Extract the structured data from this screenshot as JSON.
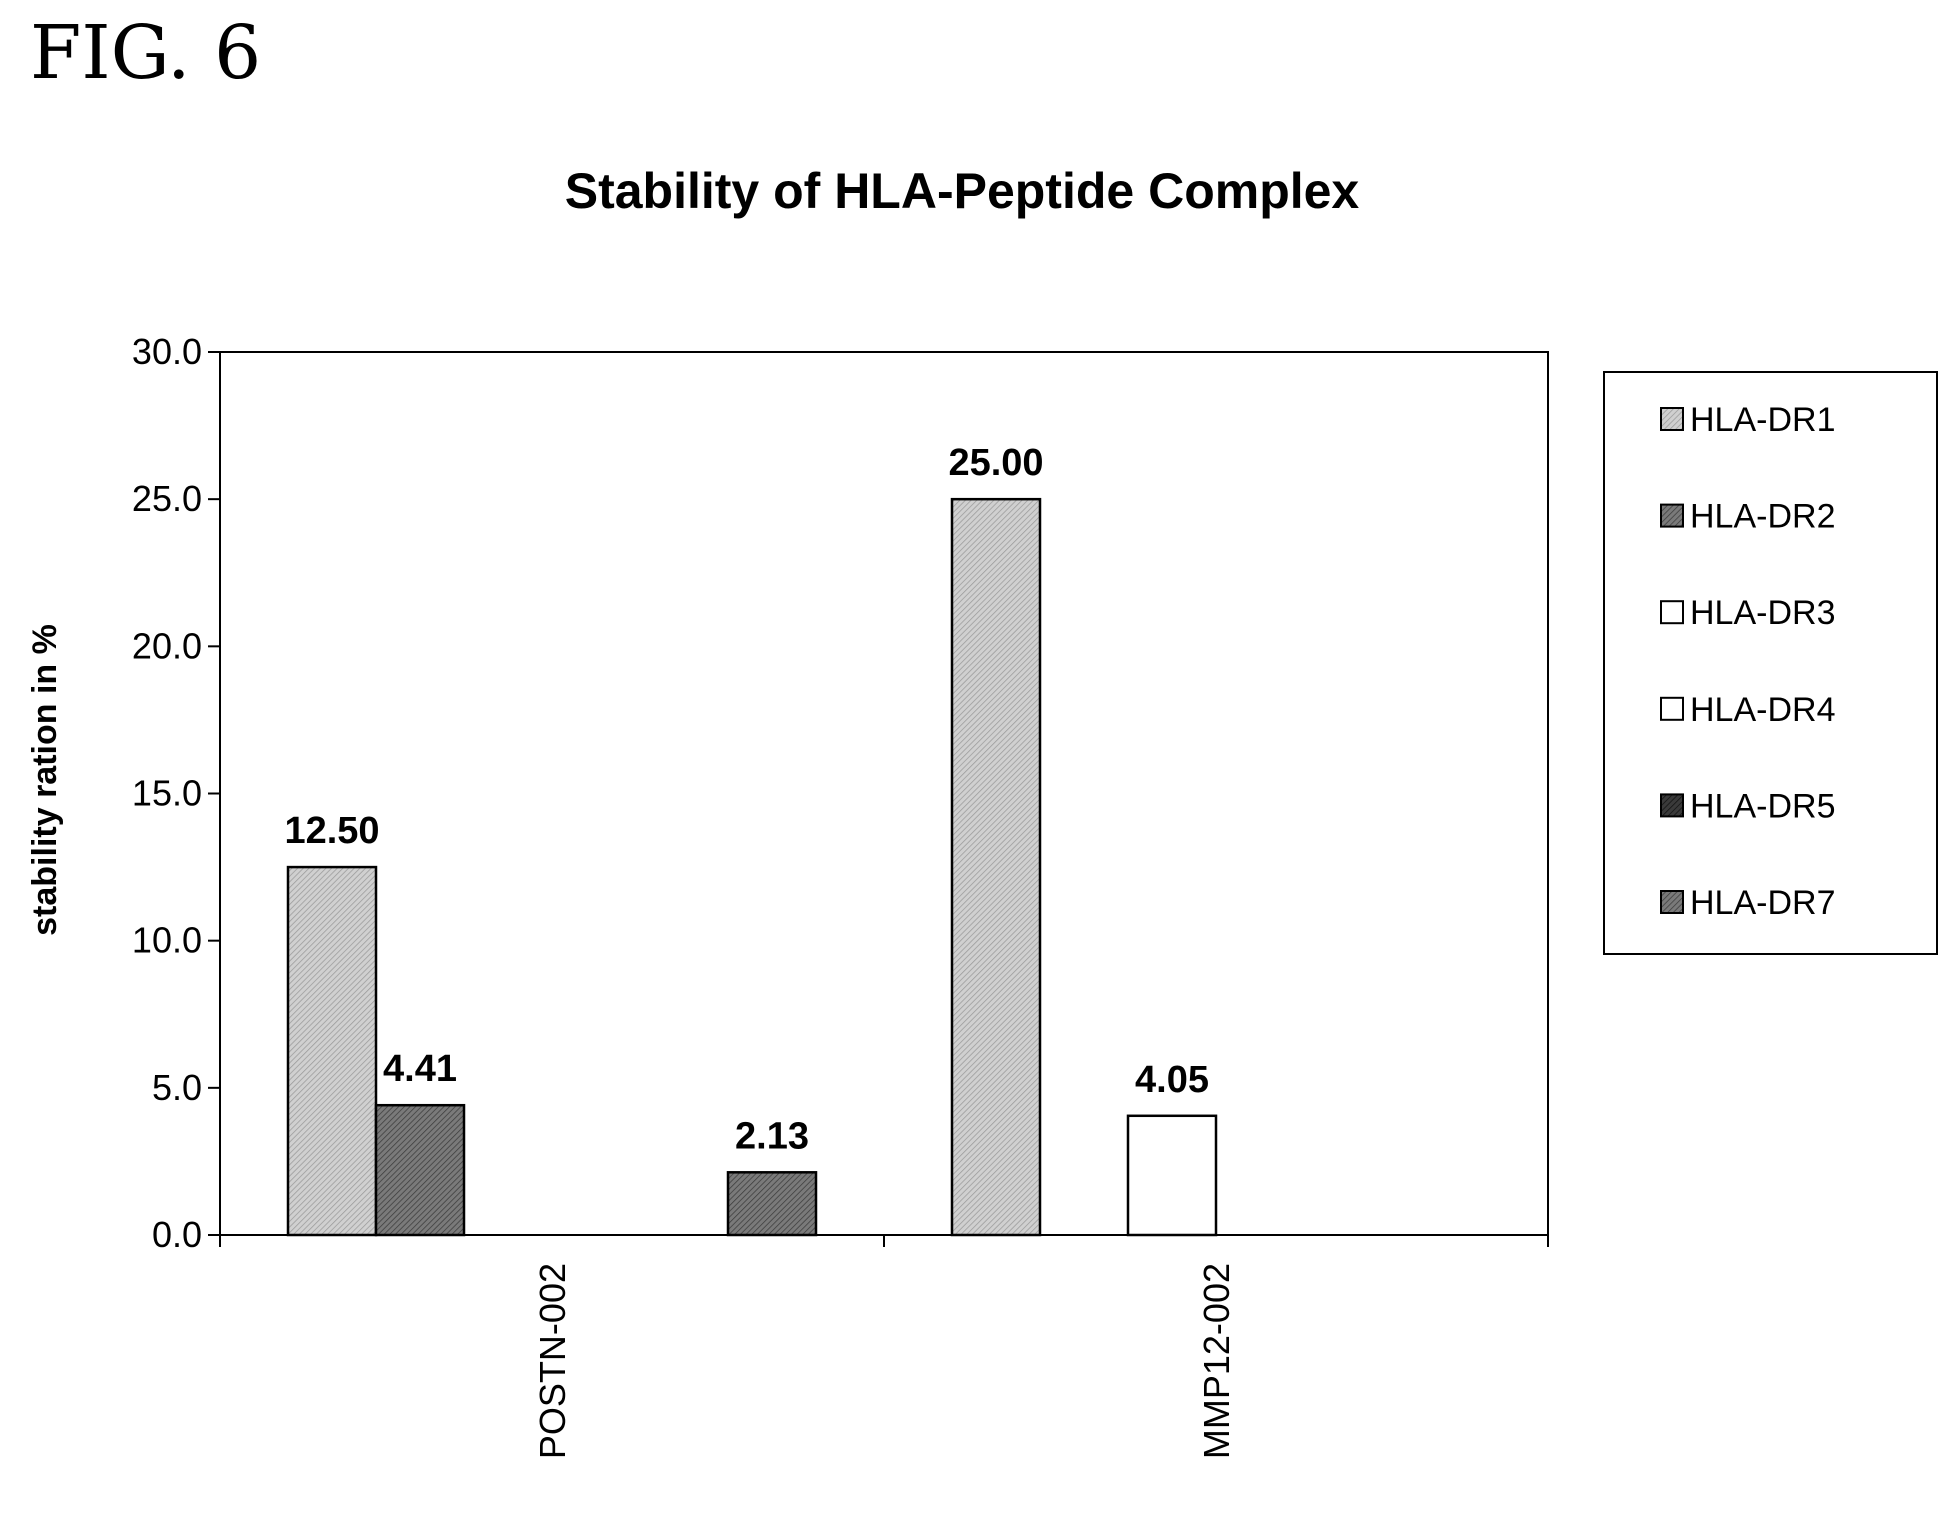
{
  "figure_label": "FIG. 6",
  "chart_data": {
    "type": "bar",
    "title": "Stability of HLA-Peptide Complex",
    "xlabel": "",
    "ylabel": "stability ration in %",
    "ylim": [
      0,
      30
    ],
    "yticks": [
      "0.0",
      "5.0",
      "10.0",
      "15.0",
      "20.0",
      "25.0",
      "30.0"
    ],
    "categories": [
      "POSTN-002",
      "MMP12-002"
    ],
    "series": [
      {
        "name": "HLA-DR1",
        "values": [
          12.5,
          25.0
        ],
        "labels": [
          "12.50",
          "25.00"
        ],
        "color": "#c4c4c4"
      },
      {
        "name": "HLA-DR2",
        "values": [
          4.41,
          null
        ],
        "labels": [
          "4.41",
          ""
        ],
        "color": "#6e6e6e"
      },
      {
        "name": "HLA-DR3",
        "values": [
          null,
          4.05
        ],
        "labels": [
          "",
          "4.05"
        ],
        "color": "#ffffff"
      },
      {
        "name": "HLA-DR4",
        "values": [
          null,
          null
        ],
        "labels": [
          "",
          ""
        ],
        "color": "#ffffff"
      },
      {
        "name": "HLA-DR5",
        "values": [
          null,
          null
        ],
        "labels": [
          "",
          ""
        ],
        "color": "#2e2e2e"
      },
      {
        "name": "HLA-DR7",
        "values": [
          2.13,
          null
        ],
        "labels": [
          "2.13",
          ""
        ],
        "color": "#5a5a5a"
      }
    ],
    "grid": false,
    "legend_position": "right"
  }
}
